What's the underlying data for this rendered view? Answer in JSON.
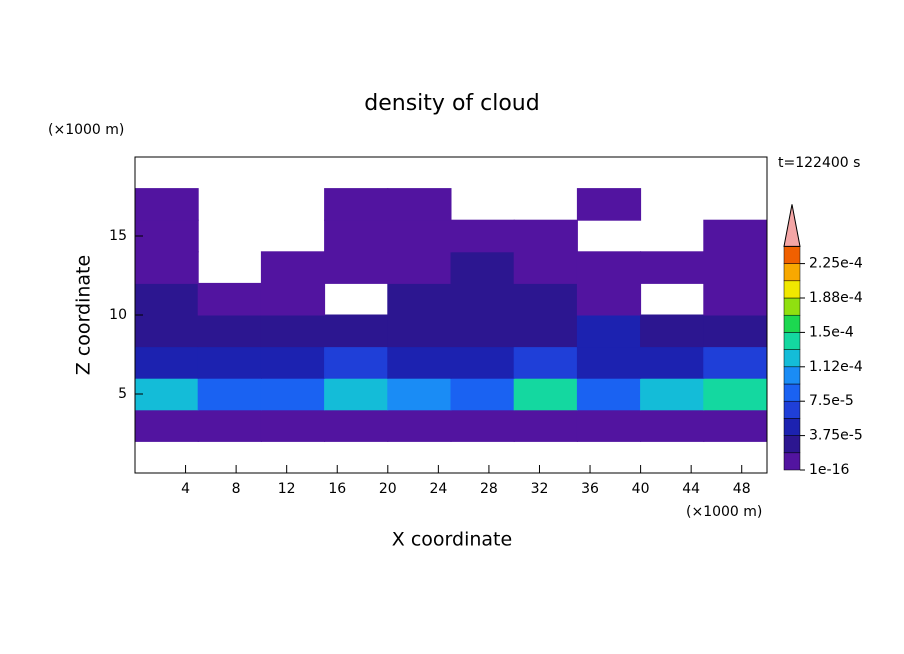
{
  "chart_data": {
    "type": "contour",
    "title": "density of cloud",
    "x_label": "X coordinate",
    "y_label": "Z coordinate",
    "x_unit": "(×1000 m)",
    "y_unit": "(×1000 m)",
    "time_label": "t=122400 s",
    "xlim": [
      0,
      50
    ],
    "ylim": [
      0,
      20
    ],
    "xticks": [
      4,
      8,
      12,
      16,
      20,
      24,
      28,
      32,
      36,
      40,
      44,
      48
    ],
    "yticks": [
      5,
      10,
      15
    ],
    "x": [
      2.5,
      7.5,
      12.5,
      17.5,
      22.5,
      27.5,
      32.5,
      37.5,
      42.5,
      47.5
    ],
    "z": [
      1,
      3,
      5,
      7,
      9,
      11,
      13,
      15,
      17,
      19
    ],
    "field": [
      [
        null,
        null,
        null,
        null,
        null,
        null,
        null,
        null,
        null,
        null
      ],
      [
        1e-05,
        1e-05,
        1e-05,
        1e-05,
        1e-05,
        1e-05,
        1e-05,
        1e-05,
        1e-05,
        1e-05
      ],
      [
        0.00012,
        9e-05,
        8e-05,
        0.00013,
        0.0001,
        8e-05,
        0.00014,
        9e-05,
        0.00012,
        0.00014
      ],
      [
        4e-05,
        5e-05,
        5e-05,
        6e-05,
        5e-05,
        4e-05,
        6e-05,
        5e-05,
        5e-05,
        6e-05
      ],
      [
        3e-05,
        2e-05,
        3e-05,
        2e-05,
        3e-05,
        2e-05,
        3e-05,
        4e-05,
        3e-05,
        3e-05
      ],
      [
        2e-05,
        1e-05,
        1e-05,
        null,
        2e-05,
        2e-05,
        2e-05,
        1e-05,
        null,
        1e-05
      ],
      [
        1e-05,
        null,
        1e-05,
        1e-05,
        1e-05,
        2e-05,
        1e-05,
        1e-05,
        1e-05,
        1e-05
      ],
      [
        1e-05,
        null,
        null,
        1e-05,
        1e-05,
        1e-05,
        1e-05,
        null,
        null,
        1e-05
      ],
      [
        1e-05,
        null,
        null,
        1e-05,
        1e-05,
        null,
        null,
        1e-05,
        null,
        null
      ],
      [
        null,
        null,
        null,
        null,
        null,
        null,
        null,
        null,
        null,
        null
      ]
    ],
    "levels": [
      1e-16,
      1.875e-05,
      3.75e-05,
      5.625e-05,
      7.5e-05,
      9.375e-05,
      0.0001125,
      0.00013125,
      0.00015,
      0.00016875,
      0.0001875,
      0.00020625,
      0.000225,
      0.00024375
    ],
    "colors": [
      "#5214a0",
      "#2c1690",
      "#1c22b0",
      "#1f3fd8",
      "#1a62f2",
      "#1a8cf5",
      "#14bcd8",
      "#14d8a0",
      "#1cd850",
      "#90e010",
      "#f0e800",
      "#f8a800",
      "#f06000"
    ],
    "overflow_color": "#f4a6a6",
    "colorbar_ticks": [
      {
        "value": 1e-16,
        "label": "1e-16"
      },
      {
        "value": 3.75e-05,
        "label": "3.75e-5"
      },
      {
        "value": 7.5e-05,
        "label": "7.5e-5"
      },
      {
        "value": 0.0001125,
        "label": "1.12e-4"
      },
      {
        "value": 0.00015,
        "label": "1.5e-4"
      },
      {
        "value": 0.0001875,
        "label": "1.88e-4"
      },
      {
        "value": 0.000225,
        "label": "2.25e-4"
      }
    ]
  }
}
